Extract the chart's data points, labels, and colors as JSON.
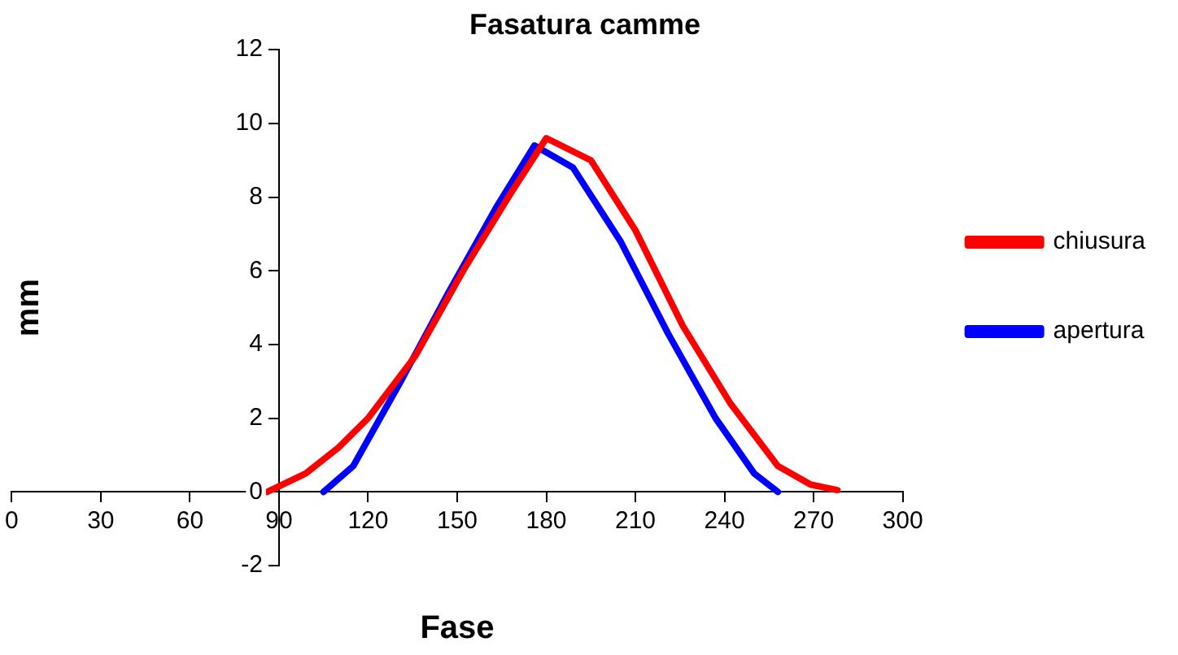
{
  "chart_data": {
    "type": "line",
    "title": "Fasatura camme",
    "xlabel": "Fase",
    "ylabel": "mm",
    "xlim": [
      0,
      300
    ],
    "xticks": [
      0,
      30,
      60,
      90,
      120,
      150,
      180,
      210,
      240,
      270,
      300
    ],
    "ylim": [
      -2,
      12
    ],
    "yticks": [
      -2,
      0,
      2,
      4,
      6,
      8,
      10,
      12
    ],
    "grid": false,
    "legend": "right",
    "marker": "none",
    "line_style": "solid",
    "series": [
      {
        "name": "chiusura",
        "color": "#ff0000",
        "x": [
          86,
          99,
          110,
          120,
          136,
          152,
          168,
          180,
          195,
          210,
          226,
          242,
          258,
          269,
          278
        ],
        "values": [
          0,
          0.5,
          1.2,
          2.0,
          3.7,
          6.0,
          8.1,
          9.6,
          9.0,
          7.1,
          4.5,
          2.4,
          0.7,
          0.2,
          0.05
        ]
      },
      {
        "name": "apertura",
        "color": "#0000ff",
        "x": [
          105,
          115,
          131,
          147,
          163,
          176,
          189,
          205,
          221,
          237,
          250,
          258
        ],
        "values": [
          0,
          0.7,
          3.0,
          5.4,
          7.7,
          9.4,
          8.8,
          6.8,
          4.3,
          2.0,
          0.5,
          0
        ]
      }
    ]
  }
}
